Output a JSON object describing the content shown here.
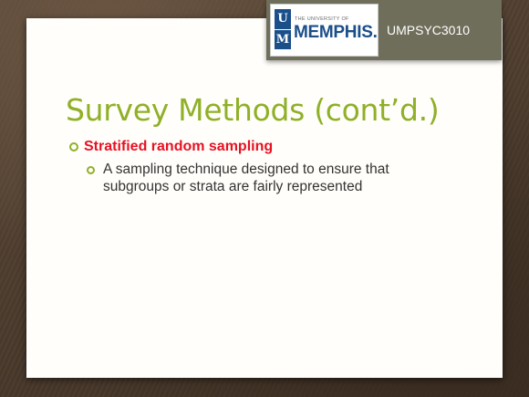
{
  "branding": {
    "logo_letters": [
      "U",
      "M"
    ],
    "logo_prefix": "THE UNIVERSITY OF",
    "logo_name": "MEMPHIS.",
    "course_code": "UMPSYC3010"
  },
  "slide": {
    "title": "Survey Methods (cont’d.)",
    "bullets": [
      {
        "text": "Stratified random sampling",
        "sub_bullets": [
          "A sampling technique designed to ensure that subgroups or strata are fairly represented"
        ]
      }
    ]
  },
  "colors": {
    "title_green": "#8fb028",
    "bullet_red": "#e81123",
    "body_text": "#333333",
    "banner": "#6f6e5b",
    "memphis_blue": "#1b4f8a"
  }
}
